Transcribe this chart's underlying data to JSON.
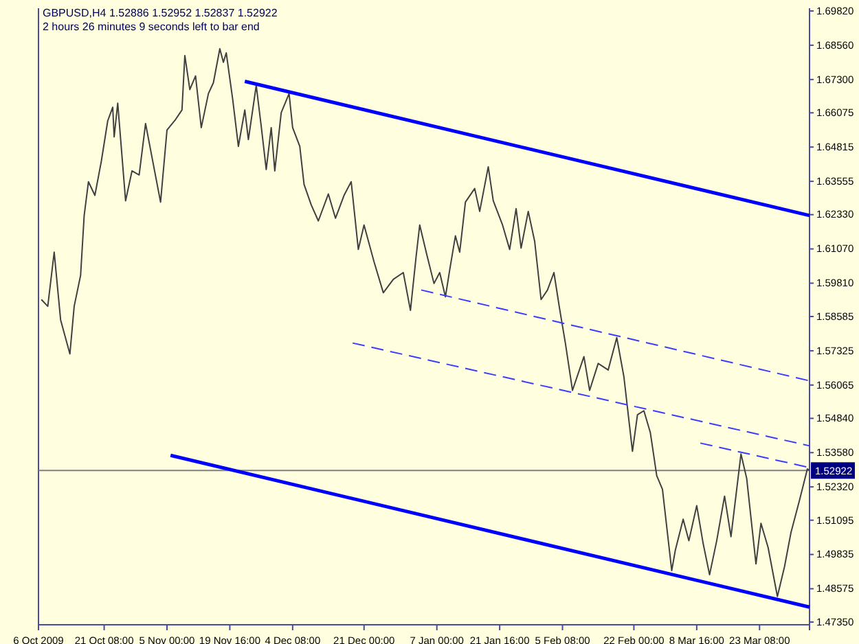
{
  "chart_data": {
    "type": "line",
    "title": "GBPUSD,H4  1.52886 1.52952 1.52837 1.52922",
    "subtitle": "2 hours 26 minutes 9 seconds left to bar end",
    "x": [
      "2009-10-06T16:00",
      "2009-10-08T04:00",
      "2009-10-09T16:00",
      "2009-10-11T04:00",
      "2009-10-13T08:00",
      "2009-10-14T08:00",
      "2009-10-15T20:00",
      "2009-10-16T16:00",
      "2009-10-17T16:00",
      "2009-10-19T04:00",
      "2009-10-20T16:00",
      "2009-10-22T04:00",
      "2009-10-23T08:00",
      "2009-10-23T16:00",
      "2009-10-24T12:00",
      "2009-10-26T08:00",
      "2009-10-27T20:00",
      "2009-10-29T12:00",
      "2009-10-31T00:00",
      "2009-11-01T12:00",
      "2009-11-03T12:00",
      "2009-11-05T00:00",
      "2009-11-07T00:00",
      "2009-11-08T12:00",
      "2009-11-09T04:00",
      "2009-11-10T08:00",
      "2009-11-11T16:00",
      "2009-11-13T00:00",
      "2009-11-14T16:00",
      "2009-11-15T20:00",
      "2009-11-17T08:00",
      "2009-11-18T04:00",
      "2009-11-18T20:00",
      "2009-11-20T08:00",
      "2009-11-21T16:00",
      "2009-11-23T04:00",
      "2009-11-24T00:00",
      "2009-11-25T20:00",
      "2009-11-27T00:00",
      "2009-11-28T04:00",
      "2009-11-29T08:00",
      "2009-11-30T04:00",
      "2009-12-01T16:00",
      "2009-12-03T12:00",
      "2009-12-04T08:00",
      "2009-12-06T00:00",
      "2009-12-07T00:00",
      "2009-12-08T16:00",
      "2009-12-10T08:00",
      "2009-12-12T16:00",
      "2009-12-14T08:00",
      "2009-12-16T08:00",
      "2009-12-18T00:00",
      "2009-12-19T16:00",
      "2009-12-21T00:00",
      "2009-12-23T08:00",
      "2009-12-25T12:00",
      "2009-12-27T20:00",
      "2009-12-30T04:00",
      "2009-12-31T20:00",
      "2010-01-02T04:00",
      "2010-01-03T00:00",
      "2010-01-04T16:00",
      "2010-01-06T08:00",
      "2010-01-07T16:00",
      "2010-01-09T00:00",
      "2010-01-10T00:00",
      "2010-01-11T08:00",
      "2010-01-12T08:00",
      "2010-01-13T16:00",
      "2010-01-15T20:00",
      "2010-01-17T00:00",
      "2010-01-19T00:00",
      "2010-01-20T04:00",
      "2010-01-22T08:00",
      "2010-01-24T00:00",
      "2010-01-25T12:00",
      "2010-01-26T16:00",
      "2010-01-28T08:00",
      "2010-01-29T20:00",
      "2010-01-31T08:00",
      "2010-02-01T20:00",
      "2010-02-03T08:00",
      "2010-02-04T16:00",
      "2010-02-06T00:00",
      "2010-02-07T16:00",
      "2010-02-10T08:00",
      "2010-02-11T16:00",
      "2010-02-13T16:00",
      "2010-02-16T00:00",
      "2010-02-18T00:00",
      "2010-02-19T16:00",
      "2010-02-21T16:00",
      "2010-02-22T20:00",
      "2010-02-24T08:00",
      "2010-02-25T20:00",
      "2010-02-27T08:00",
      "2010-02-28T16:00",
      "2010-03-02T20:00",
      "2010-03-03T16:00",
      "2010-03-05T12:00",
      "2010-03-06T20:00",
      "2010-03-08T16:00",
      "2010-03-10T04:00",
      "2010-03-11T16:00",
      "2010-03-13T08:00",
      "2010-03-15T04:00",
      "2010-03-16T16:00",
      "2010-03-19T00:00",
      "2010-03-20T08:00",
      "2010-03-22T12:00",
      "2010-03-23T16:00",
      "2010-03-25T08:00",
      "2010-03-27T12:00",
      "2010-03-29T04:00",
      "2010-03-30T16:00",
      "2010-04-01T16:00",
      "2010-04-03T12:00",
      "2010-04-04T00:00"
    ],
    "series": [
      {
        "color": "#404040",
        "values": [
          1.5921,
          1.5896,
          1.6095,
          1.5846,
          1.5721,
          1.5896,
          1.601,
          1.623,
          1.6354,
          1.6304,
          1.6429,
          1.6578,
          1.6628,
          1.6519,
          1.6643,
          1.6284,
          1.6394,
          1.6379,
          1.6568,
          1.6444,
          1.6279,
          1.6544,
          1.6583,
          1.6618,
          1.6818,
          1.6693,
          1.6743,
          1.6553,
          1.6678,
          1.6718,
          1.6843,
          1.6793,
          1.6828,
          1.6658,
          1.6484,
          1.6618,
          1.6509,
          1.6708,
          1.6558,
          1.6399,
          1.6553,
          1.6394,
          1.6608,
          1.6678,
          1.6553,
          1.6484,
          1.6344,
          1.6269,
          1.621,
          1.6309,
          1.622,
          1.6304,
          1.6354,
          1.6105,
          1.6195,
          1.606,
          1.5946,
          1.5995,
          1.602,
          1.5881,
          1.608,
          1.6195,
          1.6085,
          1.598,
          1.602,
          1.5931,
          1.603,
          1.6155,
          1.6095,
          1.6279,
          1.6329,
          1.6245,
          1.6409,
          1.6284,
          1.6195,
          1.6105,
          1.6255,
          1.611,
          1.6245,
          1.6135,
          1.5921,
          1.5956,
          1.602,
          1.5886,
          1.5761,
          1.5587,
          1.5711,
          1.5587,
          1.5686,
          1.5662,
          1.5781,
          1.5637,
          1.5363,
          1.5497,
          1.5512,
          1.5432,
          1.5273,
          1.5223,
          1.4924,
          1.4999,
          1.5113,
          1.5034,
          1.5163,
          1.5024,
          1.4909,
          1.5034,
          1.5198,
          1.5049,
          1.5353,
          1.5263,
          1.4949,
          1.5098,
          1.5009,
          1.4829,
          1.4939,
          1.5064,
          1.5183,
          1.5298,
          1.5292
        ]
      },
      {
        "type": "line",
        "color": "#0000ff",
        "line_style": "solid",
        "x": [
          "2009-11-23T04:00",
          "2010-04-04T00:00"
        ],
        "values": [
          1.6723,
          1.623
        ]
      },
      {
        "type": "line",
        "color": "#0000ff",
        "line_style": "solid",
        "x": [
          "2009-11-05T20:00",
          "2010-04-04T00:00"
        ],
        "values": [
          1.5348,
          1.479
        ]
      },
      {
        "type": "line",
        "color": "#3c3cff",
        "line_style": "dashed",
        "x": [
          "2010-01-03T08:00",
          "2010-04-04T00:00"
        ],
        "values": [
          1.5956,
          1.5622
        ]
      },
      {
        "type": "line",
        "color": "#3c3cff",
        "line_style": "dashed",
        "x": [
          "2009-12-18T08:00",
          "2010-04-04T00:00"
        ],
        "values": [
          1.5761,
          1.5383
        ]
      },
      {
        "type": "line",
        "color": "#3c3cff",
        "line_style": "dashed",
        "x": [
          "2010-03-09T12:00",
          "2010-04-04T00:00"
        ],
        "values": [
          1.5393,
          1.5303
        ]
      }
    ],
    "xlim": [
      "2009-10-06T00:00",
      "2010-04-04T00:00"
    ],
    "xticks": [
      {
        "value": "2009-10-06",
        "label": "6 Oct 2009"
      },
      {
        "value": "2009-10-21T08:00",
        "label": "21 Oct 08:00"
      },
      {
        "value": "2009-11-05T00:00",
        "label": "5 Nov 00:00"
      },
      {
        "value": "2009-11-19T16:00",
        "label": "19 Nov 16:00"
      },
      {
        "value": "2009-12-04T08:00",
        "label": "4 Dec 08:00"
      },
      {
        "value": "2009-12-21T00:00",
        "label": "21 Dec 00:00"
      },
      {
        "value": "2010-01-07T00:00",
        "label": "7 Jan 00:00"
      },
      {
        "value": "2010-01-21T16:00",
        "label": "21 Jan 16:00"
      },
      {
        "value": "2010-02-05T08:00",
        "label": "5 Feb 08:00"
      },
      {
        "value": "2010-02-22T00:00",
        "label": "22 Feb 00:00"
      },
      {
        "value": "2010-03-08T16:00",
        "label": "8 Mar 16:00"
      },
      {
        "value": "2010-03-23T08:00",
        "label": "23 Mar 08:00"
      }
    ],
    "ylim": [
      1.4725,
      1.6992
    ],
    "yticks": [
      {
        "value": 1.6982,
        "label": "1.69820"
      },
      {
        "value": 1.6856,
        "label": "1.68560"
      },
      {
        "value": 1.673,
        "label": "1.67300"
      },
      {
        "value": 1.66075,
        "label": "1.66075"
      },
      {
        "value": 1.64815,
        "label": "1.64815"
      },
      {
        "value": 1.63555,
        "label": "1.63555"
      },
      {
        "value": 1.6233,
        "label": "1.62330"
      },
      {
        "value": 1.6107,
        "label": "1.61070"
      },
      {
        "value": 1.5981,
        "label": "1.59810"
      },
      {
        "value": 1.58585,
        "label": "1.58585"
      },
      {
        "value": 1.57325,
        "label": "1.57325"
      },
      {
        "value": 1.56065,
        "label": "1.56065"
      },
      {
        "value": 1.5484,
        "label": "1.54840"
      },
      {
        "value": 1.5358,
        "label": "1.53580"
      },
      {
        "value": 1.5232,
        "label": "1.52320"
      },
      {
        "value": 1.51095,
        "label": "1.51095"
      },
      {
        "value": 1.49835,
        "label": "1.49835"
      },
      {
        "value": 1.48575,
        "label": "1.48575"
      },
      {
        "value": 1.4735,
        "label": "1.47350"
      }
    ],
    "ref_lines": [
      {
        "axis": "y",
        "value": 1.52922,
        "label": "1.52922",
        "color": "#808080"
      }
    ],
    "grid": false,
    "marker": "none"
  }
}
